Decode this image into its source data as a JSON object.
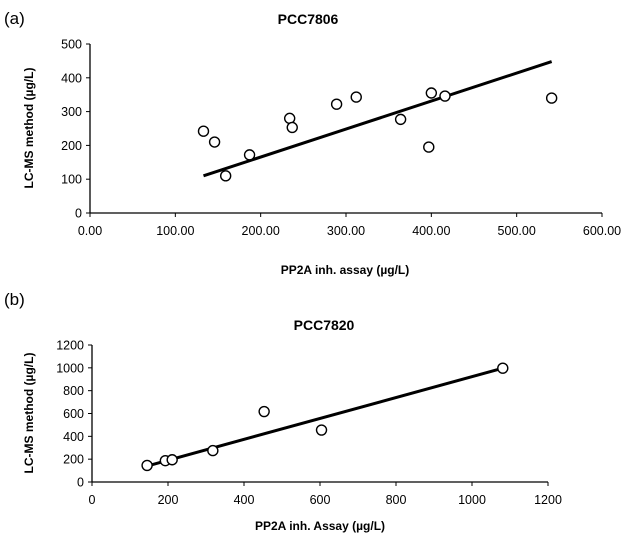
{
  "chart_data": [
    {
      "type": "scatter",
      "panel_label": "(a)",
      "title": "PCC7806",
      "xlabel": "PP2A inh. assay (µg/L)",
      "ylabel": "LC-MS method (µg/L)",
      "xlim": [
        0,
        600
      ],
      "ylim": [
        0,
        500
      ],
      "xticks": [
        0,
        100,
        200,
        300,
        400,
        500,
        600
      ],
      "xtick_labels": [
        "0.00",
        "100.00",
        "200.00",
        "300.00",
        "400.00",
        "500.00",
        "600.00"
      ],
      "yticks": [
        0,
        100,
        200,
        300,
        400,
        500
      ],
      "ytick_labels": [
        "0",
        "100",
        "200",
        "300",
        "400",
        "500"
      ],
      "grid": false,
      "points": [
        {
          "x": 133,
          "y": 242
        },
        {
          "x": 146,
          "y": 210
        },
        {
          "x": 159,
          "y": 110
        },
        {
          "x": 187,
          "y": 172
        },
        {
          "x": 234,
          "y": 280
        },
        {
          "x": 237,
          "y": 253
        },
        {
          "x": 289,
          "y": 322
        },
        {
          "x": 312,
          "y": 343
        },
        {
          "x": 364,
          "y": 277
        },
        {
          "x": 397,
          "y": 195
        },
        {
          "x": 400,
          "y": 355
        },
        {
          "x": 416,
          "y": 346
        },
        {
          "x": 541,
          "y": 340
        }
      ],
      "trendline": [
        {
          "x": 133,
          "y": 110
        },
        {
          "x": 541,
          "y": 448
        }
      ]
    },
    {
      "type": "scatter",
      "panel_label": "(b)",
      "title": "PCC7820",
      "xlabel": "PP2A inh. Assay (µg/L)",
      "ylabel": "LC-MS method (µg/L)",
      "xlim": [
        0,
        1200
      ],
      "ylim": [
        0,
        1200
      ],
      "xticks": [
        0,
        200,
        400,
        600,
        800,
        1000,
        1200
      ],
      "xtick_labels": [
        "0",
        "200",
        "400",
        "600",
        "800",
        "1000",
        "1200"
      ],
      "yticks": [
        0,
        200,
        400,
        600,
        800,
        1000,
        1200
      ],
      "ytick_labels": [
        "0",
        "200",
        "400",
        "600",
        "800",
        "1000",
        "1200"
      ],
      "grid": false,
      "points": [
        {
          "x": 145,
          "y": 145
        },
        {
          "x": 193,
          "y": 187
        },
        {
          "x": 211,
          "y": 195
        },
        {
          "x": 318,
          "y": 275
        },
        {
          "x": 453,
          "y": 617
        },
        {
          "x": 604,
          "y": 455
        },
        {
          "x": 1081,
          "y": 997
        }
      ],
      "trendline": [
        {
          "x": 145,
          "y": 140
        },
        {
          "x": 1081,
          "y": 997
        }
      ]
    }
  ]
}
